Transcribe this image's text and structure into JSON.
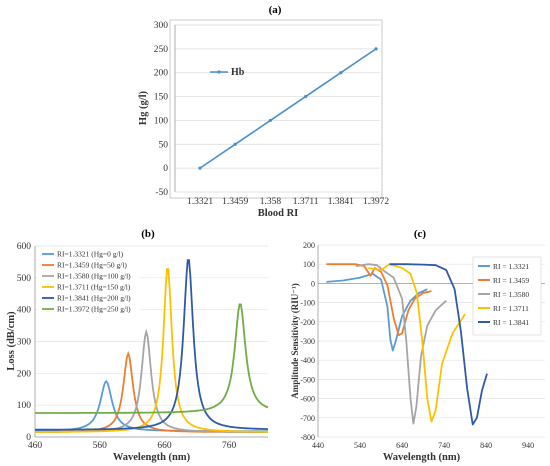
{
  "chart_data": [
    {
      "panel": "(a)",
      "type": "line",
      "categories": [
        "1.3321",
        "1.3459",
        "1.358",
        "1.3711",
        "1.3841",
        "1.3972"
      ],
      "series": [
        {
          "name": "Hb",
          "color": "#4a90c8",
          "values": [
            0,
            50,
            100,
            150,
            200,
            250
          ]
        }
      ],
      "xlabel": "Blood RI",
      "ylabel": "Hg (g/l)",
      "ylim": [
        -50,
        300
      ],
      "yticks": [
        "-50",
        "0",
        "50",
        "100",
        "150",
        "200",
        "250",
        "300"
      ],
      "grid": true,
      "legend_position": "top-left"
    },
    {
      "panel": "(b)",
      "type": "line",
      "xlabel": "Wavelength (nm)",
      "ylabel": "Loss (dB/cm)",
      "xlim": [
        460,
        820
      ],
      "ylim": [
        0,
        600
      ],
      "xticks": [
        "460",
        "560",
        "660",
        "760"
      ],
      "yticks": [
        "0",
        "100",
        "200",
        "300",
        "400",
        "500",
        "600"
      ],
      "grid": true,
      "legend_position": "top-left",
      "series": [
        {
          "name": "RI=1.3321 (Hg=0 g/l)",
          "color": "#5b9bd5",
          "peak_x": 570,
          "peak_y": 175,
          "width": 11,
          "base": 18
        },
        {
          "name": "RI=1.3459 (Hg=50 g/l)",
          "color": "#ed7d31",
          "peak_x": 604,
          "peak_y": 262,
          "width": 9,
          "base": 15
        },
        {
          "name": "RI=1.3580 (Hg=100 g/l)",
          "color": "#a5a5a5",
          "peak_x": 632,
          "peak_y": 330,
          "width": 9,
          "base": 15
        },
        {
          "name": "RI=1.3711 (Hg=150 g/l)",
          "color": "#ffc000",
          "peak_x": 665,
          "peak_y": 535,
          "width": 8,
          "base": 15
        },
        {
          "name": "RI=1.3841 (Hg=200 g/l)",
          "color": "#2e5aa8",
          "peak_x": 697,
          "peak_y": 562,
          "width": 9,
          "base": 22
        },
        {
          "name": "RI=1.3972 (Hg=250 g/l)",
          "color": "#70ad47",
          "peak_x": 777,
          "peak_y": 420,
          "width": 10,
          "base": 75
        }
      ]
    },
    {
      "panel": "(c)",
      "type": "line",
      "xlabel": "Wavelength (nm)",
      "ylabel": "Amplitude Sensitivity (RIU⁻¹)",
      "xlim": [
        440,
        980
      ],
      "ylim": [
        -800,
        200
      ],
      "xticks": [
        "440",
        "540",
        "640",
        "740",
        "840",
        "940"
      ],
      "yticks": [
        "-800",
        "-700",
        "-600",
        "-500",
        "-400",
        "-300",
        "-200",
        "-100",
        "0",
        "100",
        "200"
      ],
      "grid": true,
      "legend_position": "top-right",
      "series": [
        {
          "name": "RI = 1.3321",
          "color": "#5b9bd5",
          "points": [
            [
              460,
              8
            ],
            [
              500,
              15
            ],
            [
              540,
              30
            ],
            [
              570,
              50
            ],
            [
              590,
              20
            ],
            [
              605,
              -120
            ],
            [
              612,
              -290
            ],
            [
              618,
              -350
            ],
            [
              625,
              -300
            ],
            [
              640,
              -170
            ],
            [
              660,
              -90
            ],
            [
              680,
              -50
            ],
            [
              700,
              -30
            ]
          ]
        },
        {
          "name": "RI = 1.3459",
          "color": "#ed7d31",
          "points": [
            [
              460,
              100
            ],
            [
              500,
              100
            ],
            [
              530,
              100
            ],
            [
              550,
              90
            ],
            [
              565,
              40
            ],
            [
              575,
              80
            ],
            [
              590,
              60
            ],
            [
              605,
              -10
            ],
            [
              620,
              -180
            ],
            [
              632,
              -270
            ],
            [
              640,
              -260
            ],
            [
              655,
              -140
            ],
            [
              670,
              -80
            ],
            [
              690,
              -50
            ],
            [
              710,
              -40
            ]
          ]
        },
        {
          "name": "RI = 1.3580",
          "color": "#a5a5a5",
          "points": [
            [
              530,
              90
            ],
            [
              560,
              100
            ],
            [
              580,
              95
            ],
            [
              600,
              60
            ],
            [
              620,
              30
            ],
            [
              640,
              -80
            ],
            [
              650,
              -300
            ],
            [
              660,
              -600
            ],
            [
              667,
              -730
            ],
            [
              674,
              -640
            ],
            [
              685,
              -380
            ],
            [
              700,
              -220
            ],
            [
              720,
              -140
            ],
            [
              745,
              -90
            ]
          ]
        },
        {
          "name": "RI = 1.3711",
          "color": "#ffc000",
          "points": [
            [
              560,
              80
            ],
            [
              590,
              70
            ],
            [
              610,
              100
            ],
            [
              640,
              80
            ],
            [
              660,
              50
            ],
            [
              675,
              -50
            ],
            [
              688,
              -300
            ],
            [
              700,
              -600
            ],
            [
              710,
              -720
            ],
            [
              720,
              -660
            ],
            [
              735,
              -420
            ],
            [
              760,
              -260
            ],
            [
              790,
              -160
            ]
          ]
        },
        {
          "name": "RI = 1.3841",
          "color": "#2e5aa8",
          "points": [
            [
              610,
              100
            ],
            [
              650,
              100
            ],
            [
              690,
              98
            ],
            [
              720,
              95
            ],
            [
              745,
              70
            ],
            [
              765,
              -30
            ],
            [
              780,
              -250
            ],
            [
              795,
              -550
            ],
            [
              808,
              -735
            ],
            [
              818,
              -700
            ],
            [
              830,
              -560
            ],
            [
              842,
              -470
            ]
          ]
        }
      ]
    }
  ]
}
